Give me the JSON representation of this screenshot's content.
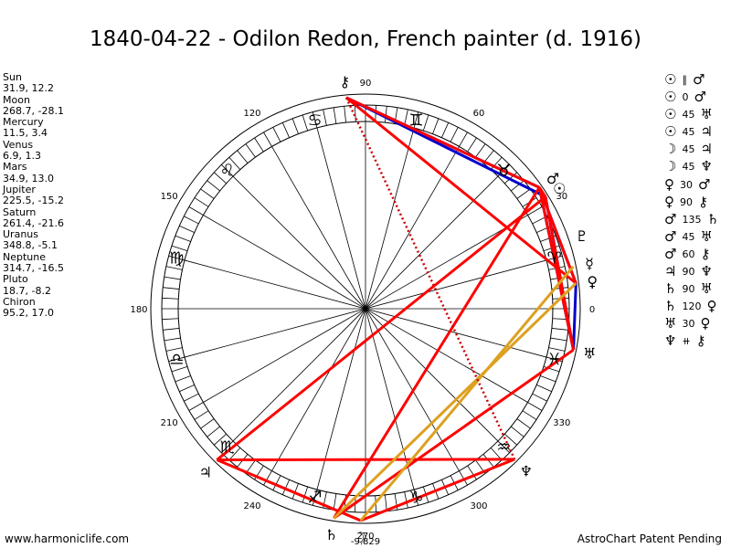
{
  "title": "1840-04-22 - Odilon Redon, French painter (d. 1916)",
  "footer": {
    "left": "www.harmoniclife.com",
    "right": "AstroChart Patent Pending"
  },
  "planet_positions": [
    {
      "name": "Sun",
      "value": "31.9, 12.2"
    },
    {
      "name": "Moon",
      "value": "268.7, -28.1"
    },
    {
      "name": "Mercury",
      "value": "11.5, 3.4"
    },
    {
      "name": "Venus",
      "value": "6.9, 1.3"
    },
    {
      "name": "Mars",
      "value": "34.9, 13.0"
    },
    {
      "name": "Jupiter",
      "value": "225.5, -15.2"
    },
    {
      "name": "Saturn",
      "value": "261.4, -21.6"
    },
    {
      "name": "Uranus",
      "value": "348.8, -5.1"
    },
    {
      "name": "Neptune",
      "value": "314.7, -16.5"
    },
    {
      "name": "Pluto",
      "value": "18.7, -8.2"
    },
    {
      "name": "Chiron",
      "value": "95.2, 17.0"
    }
  ],
  "aspects": [
    {
      "a": "☉",
      "sym": "∥",
      "b": "♂"
    },
    {
      "a": "☉",
      "sym": "0",
      "b": "♂"
    },
    {
      "a": "☉",
      "sym": "45",
      "b": "♅"
    },
    {
      "a": "☉",
      "sym": "45",
      "b": "♃"
    },
    {
      "a": "☽",
      "sym": "45",
      "b": "♃"
    },
    {
      "a": "☽",
      "sym": "45",
      "b": "♆"
    },
    {
      "a": "♀",
      "sym": "30",
      "b": "♂"
    },
    {
      "a": "♀",
      "sym": "90",
      "b": "⚷"
    },
    {
      "a": "♂",
      "sym": "135",
      "b": "♄"
    },
    {
      "a": "♂",
      "sym": "45",
      "b": "♅"
    },
    {
      "a": "♂",
      "sym": "60",
      "b": "⚷"
    },
    {
      "a": "♃",
      "sym": "90",
      "b": "♆"
    },
    {
      "a": "♄",
      "sym": "90",
      "b": "♅"
    },
    {
      "a": "♄",
      "sym": "120",
      "b": "♀"
    },
    {
      "a": "♅",
      "sym": "30",
      "b": "♀"
    },
    {
      "a": "♆",
      "sym": "⧺",
      "b": "⚷"
    }
  ],
  "wheel": {
    "degree_labels": [
      "0",
      "30",
      "60",
      "90",
      "120",
      "150",
      "180",
      "210",
      "240",
      "270",
      "300",
      "330"
    ],
    "bottom_label": "-9.829",
    "signs": [
      {
        "glyph": "♈",
        "lon": 15
      },
      {
        "glyph": "♉",
        "lon": 45
      },
      {
        "glyph": "♊",
        "lon": 75
      },
      {
        "glyph": "♋",
        "lon": 105
      },
      {
        "glyph": "♌",
        "lon": 135
      },
      {
        "glyph": "♍",
        "lon": 165
      },
      {
        "glyph": "♎",
        "lon": 195
      },
      {
        "glyph": "♏",
        "lon": 225
      },
      {
        "glyph": "♐",
        "lon": 255
      },
      {
        "glyph": "♑",
        "lon": 285
      },
      {
        "glyph": "♒",
        "lon": 315
      },
      {
        "glyph": "♓",
        "lon": 345
      }
    ],
    "planets": [
      {
        "key": "sun",
        "glyph": "☉",
        "lon": 31.9
      },
      {
        "key": "moon",
        "glyph": "☽",
        "lon": 268.7
      },
      {
        "key": "mercury",
        "glyph": "☿",
        "lon": 11.5
      },
      {
        "key": "venus",
        "glyph": "♀",
        "lon": 6.9
      },
      {
        "key": "mars",
        "glyph": "♂",
        "lon": 34.9
      },
      {
        "key": "jupiter",
        "glyph": "♃",
        "lon": 225.5
      },
      {
        "key": "saturn",
        "glyph": "♄",
        "lon": 261.4
      },
      {
        "key": "uranus",
        "glyph": "♅",
        "lon": 348.8
      },
      {
        "key": "neptune",
        "glyph": "♆",
        "lon": 314.7
      },
      {
        "key": "pluto",
        "glyph": "♇",
        "lon": 18.7
      },
      {
        "key": "chiron",
        "glyph": "⚷",
        "lon": 95.2
      }
    ],
    "aspect_lines": [
      {
        "from": "chiron",
        "to": "sun",
        "color": "#0000cc"
      },
      {
        "from": "chiron",
        "to": "mars",
        "color": "#0000cc"
      },
      {
        "from": "sun",
        "to": "uranus",
        "color": "#0000cc"
      },
      {
        "from": "mars",
        "to": "uranus",
        "color": "#0000cc"
      },
      {
        "from": "venus",
        "to": "uranus",
        "color": "#0000cc"
      },
      {
        "from": "mars",
        "to": "venus",
        "color": "#0000cc"
      },
      {
        "from": "chiron",
        "to": "venus",
        "color": "#ff0000"
      },
      {
        "from": "chiron",
        "to": "mars",
        "color": "#ff0000"
      },
      {
        "from": "sun",
        "to": "jupiter",
        "color": "#ff0000"
      },
      {
        "from": "mars",
        "to": "saturn",
        "color": "#ff0000"
      },
      {
        "from": "sun",
        "to": "uranus",
        "color": "#ff0000"
      },
      {
        "from": "mars",
        "to": "uranus",
        "color": "#ff0000"
      },
      {
        "from": "moon",
        "to": "jupiter",
        "color": "#ff0000"
      },
      {
        "from": "moon",
        "to": "neptune",
        "color": "#ff0000"
      },
      {
        "from": "jupiter",
        "to": "neptune",
        "color": "#ff0000"
      },
      {
        "from": "saturn",
        "to": "uranus",
        "color": "#ff0000"
      },
      {
        "from": "sun",
        "to": "mars",
        "color": "#ff0000"
      },
      {
        "from": "venus",
        "to": "mars",
        "color": "#ff0000"
      },
      {
        "from": "saturn",
        "to": "venus",
        "color": "#dda020"
      },
      {
        "from": "moon",
        "to": "mercury",
        "color": "#dda020"
      },
      {
        "from": "chiron",
        "to": "neptune",
        "color": "#cc0000",
        "dotted": true
      }
    ]
  }
}
